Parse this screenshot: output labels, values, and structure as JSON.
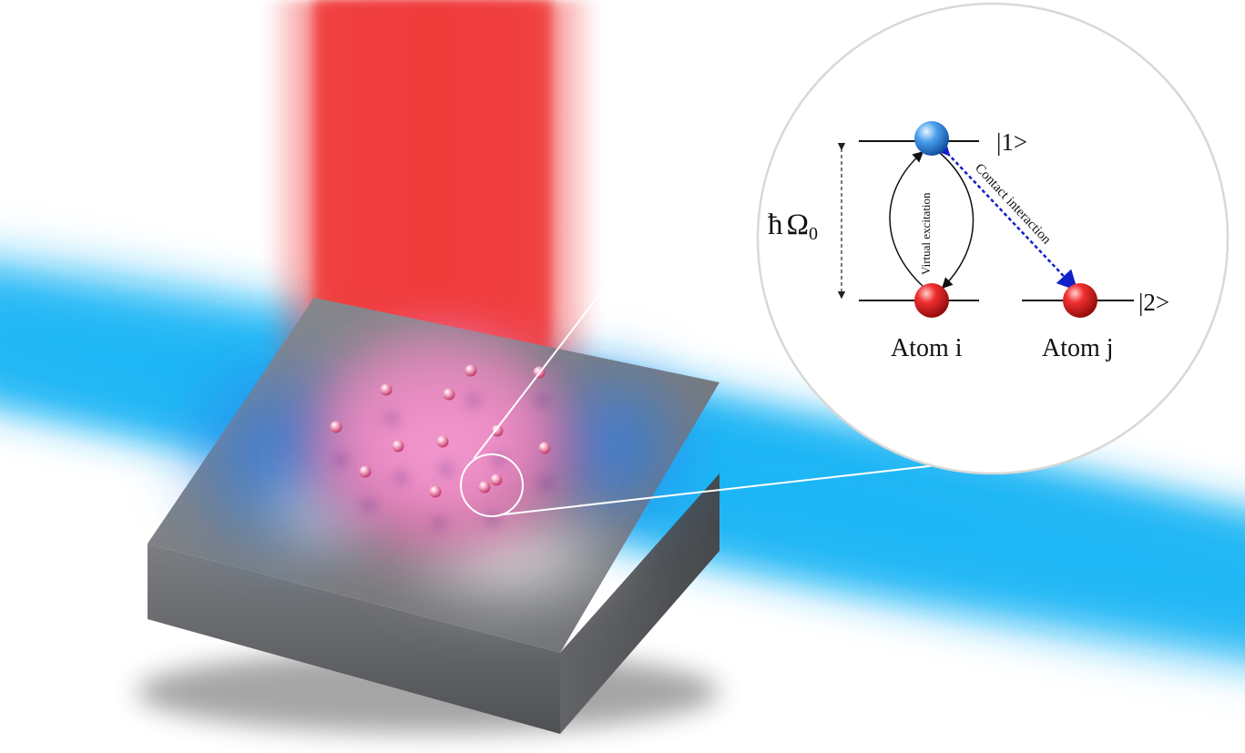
{
  "labels": {
    "level_1": "|1>",
    "level_2": "|2>",
    "energy_hbar": "ħ",
    "energy_omega": "Ω",
    "energy_sub": "0",
    "atom_i": "Atom i",
    "atom_j": "Atom j",
    "virtual_excitation": "Virtual excitation",
    "contact_interaction": "Contact interaction"
  },
  "colors": {
    "red_beam": "#f03c3c",
    "blue_beam": "#1fb6f5",
    "slab_gray": "#7b7d80",
    "excited_atom": "#3a8fe0",
    "ground_atom": "#e01818",
    "interaction_arrow": "#1020c8"
  }
}
